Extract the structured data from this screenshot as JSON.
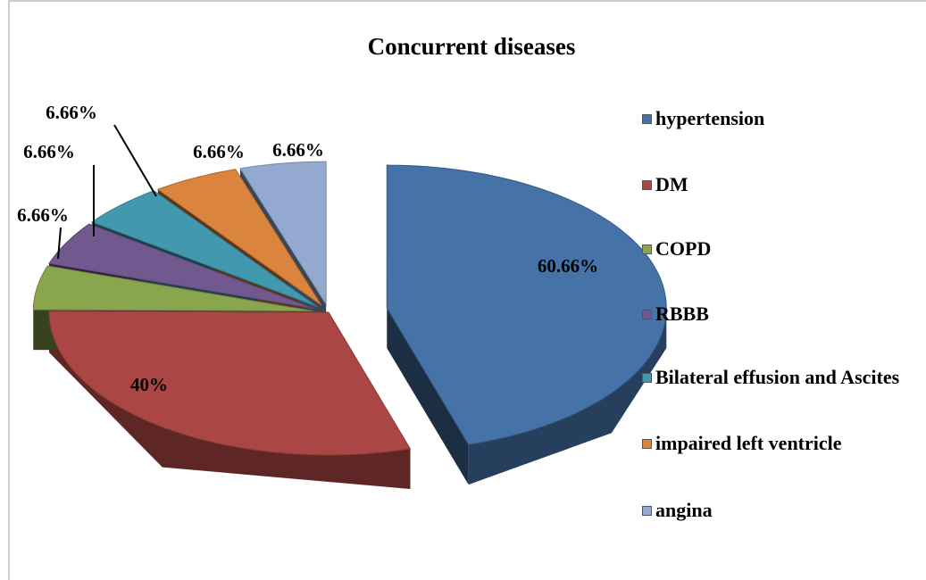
{
  "chart_data": {
    "type": "pie",
    "title": "Concurrent diseases",
    "categories": [
      "hypertension",
      "DM",
      "COPD",
      "RBBB",
      "Bilateral effusion and Ascites",
      "impaired left ventricle",
      "angina"
    ],
    "values": [
      60.66,
      40,
      6.66,
      6.66,
      6.66,
      6.66,
      6.66
    ],
    "value_labels": [
      "60.66%",
      "40%",
      "6.66%",
      "6.66%",
      "6.66%",
      "6.66%",
      "6.66%"
    ],
    "colors": [
      "#4572a7",
      "#aa4643",
      "#89a54e",
      "#71588f",
      "#4198af",
      "#db843d",
      "#93a9cf"
    ],
    "legend": "right"
  }
}
